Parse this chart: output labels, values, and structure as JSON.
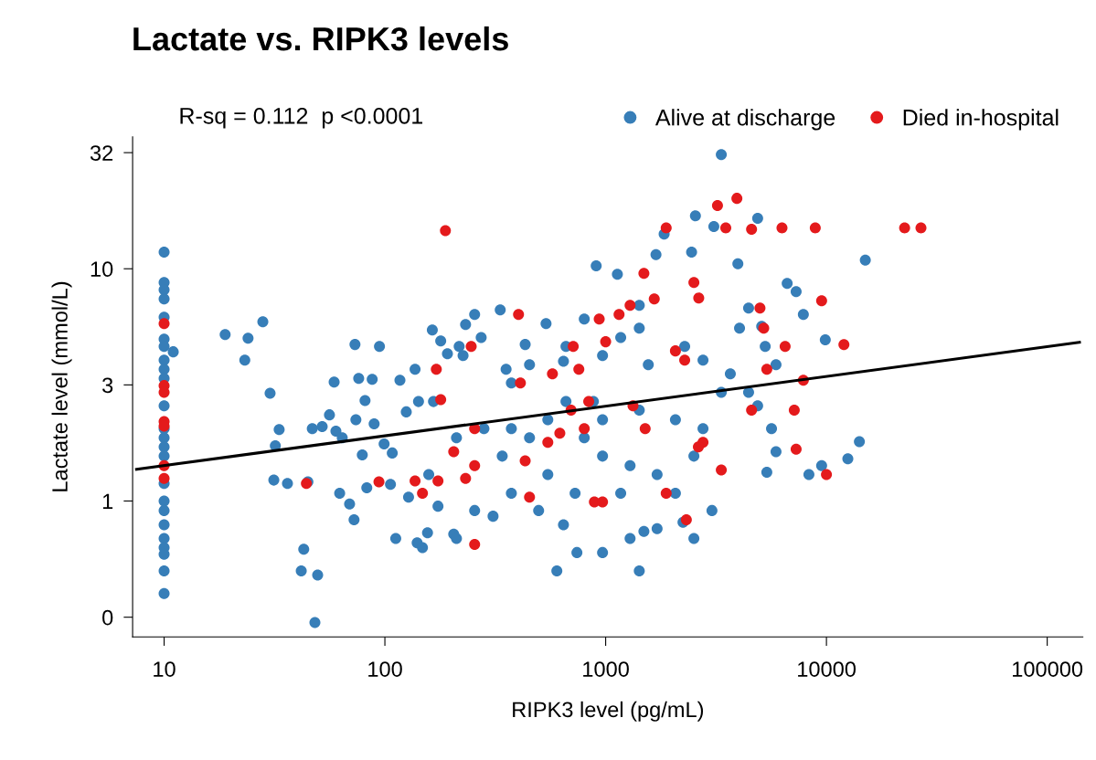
{
  "chart_data": {
    "type": "scatter",
    "title": "Lactate vs. RIPK3 levels",
    "xlabel": "RIPK3 level (pg/mL)",
    "ylabel": "Lactate level (mmol/L)",
    "annotations": [
      "R-sq = 0.112  p <0.0001"
    ],
    "log": "xy",
    "xlim": [
      7.2,
      145000
    ],
    "ylim": [
      0.26,
      37
    ],
    "xticks": [
      10,
      100,
      1000,
      10000,
      100000
    ],
    "yticks": [
      {
        "value": 0.316,
        "label": "0"
      },
      1,
      {
        "value": 3.162,
        "label": "3"
      },
      10,
      {
        "value": 31.62,
        "label": "32"
      }
    ],
    "grid": false,
    "legend": "top right",
    "marker": "circle",
    "series": [
      {
        "name": "Alive at discharge",
        "color": "#377eb8",
        "x": [
          10,
          10,
          10,
          10,
          10,
          10,
          10,
          10,
          10,
          10,
          10,
          10,
          10,
          10,
          10,
          10,
          10,
          10,
          10,
          10,
          10,
          10,
          10,
          10,
          11.0,
          18.9,
          24.0,
          28.0,
          23.2,
          30.2,
          33.2,
          31.9,
          31.4,
          36.2,
          44.8,
          46.9,
          52.0,
          56.1,
          60.0,
          42.9,
          41.8,
          49.6,
          48.2,
          62.4,
          69.2,
          72.5,
          64.1,
          58.9,
          73.9,
          76.1,
          79.0,
          73.2,
          81.3,
          82.8,
          87.6,
          89.4,
          94.5,
          99.2,
          106,
          112,
          117,
          125,
          128,
          137,
          140,
          148,
          156,
          142,
          164,
          179,
          192,
          205,
          217,
          226,
          232,
          255,
          273,
          333,
          354,
          432,
          537,
          644,
          906,
          1130,
          1420,
          1690,
          1840,
          2450,
          2550,
          3090,
          3970,
          4440,
          5090,
          5280,
          6640,
          7290,
          7860,
          3340,
          4880,
          15000,
          14100,
          12500,
          9880,
          9510,
          8330,
          5370,
          5910,
          3030,
          2510,
          2240,
          1710,
          1490,
          1290,
          968,
          741,
          644,
          601,
          1420,
          497,
          374,
          309,
          255,
          211,
          174,
          158,
          211,
          281,
          374,
          547,
          661,
          880,
          1420,
          2070,
          2760,
          3340,
          800,
          968,
          1290,
          1710,
          2510,
          4440,
          3670,
          4880,
          5640,
          374,
          452,
          661,
          800,
          968,
          1170,
          1420,
          2280,
          2760,
          4040,
          5910,
          1560,
          547,
          727,
          1170,
          2070,
          340,
          452,
          968,
          108,
          166
        ],
        "values": [
          11.8,
          8.73,
          8.12,
          7.42,
          6.19,
          4.98,
          4.63,
          4.04,
          3.69,
          3.37,
          2.57,
          2.05,
          1.87,
          1.71,
          1.56,
          1.19,
          1.0,
          0.91,
          0.79,
          0.69,
          0.63,
          0.59,
          0.5,
          0.4,
          4.39,
          5.21,
          5.02,
          5.91,
          4.04,
          2.91,
          2.03,
          1.73,
          1.23,
          1.19,
          1.21,
          2.05,
          2.09,
          2.35,
          2.0,
          0.62,
          0.5,
          0.48,
          0.3,
          1.08,
          0.97,
          0.83,
          1.87,
          3.25,
          2.24,
          3.37,
          1.58,
          4.72,
          2.71,
          1.14,
          3.34,
          2.15,
          4.63,
          1.76,
          1.18,
          0.69,
          3.31,
          2.42,
          1.04,
          3.69,
          0.66,
          0.63,
          0.73,
          2.68,
          5.45,
          4.89,
          4.31,
          0.72,
          4.63,
          4.23,
          5.75,
          6.36,
          5.06,
          6.65,
          3.69,
          4.72,
          5.81,
          4.0,
          10.3,
          9.47,
          6.96,
          11.5,
          14.1,
          11.8,
          16.9,
          15.2,
          10.5,
          6.77,
          5.65,
          4.63,
          8.65,
          7.97,
          6.36,
          31.0,
          16.5,
          10.9,
          1.8,
          1.52,
          4.94,
          1.42,
          1.3,
          1.33,
          1.63,
          0.91,
          0.69,
          0.81,
          0.76,
          0.74,
          0.69,
          0.6,
          0.6,
          0.79,
          0.5,
          0.5,
          0.91,
          1.08,
          0.86,
          0.91,
          0.69,
          0.95,
          1.3,
          1.87,
          2.05,
          2.05,
          2.24,
          2.68,
          2.68,
          2.46,
          2.24,
          2.05,
          2.94,
          1.87,
          1.56,
          1.42,
          1.3,
          1.56,
          2.94,
          3.53,
          2.57,
          2.05,
          3.22,
          3.86,
          4.63,
          6.08,
          4.23,
          5.06,
          5.55,
          4.63,
          4.04,
          5.55,
          3.86,
          3.86,
          1.3,
          1.08,
          1.08,
          1.08,
          1.56,
          1.87,
          2.24,
          1.61,
          2.68
        ]
      },
      {
        "name": "Died in-hospital",
        "color": "#e41a1c",
        "x": [
          10,
          10,
          10,
          10,
          10,
          10,
          10,
          188,
          403,
          246,
          171,
          179,
          255,
          205,
          255,
          232,
          174,
          137,
          94,
          148,
          44.1,
          255,
          432,
          547,
          620,
          411,
          574,
          713,
          756,
          838,
          935,
          1000,
          1150,
          1290,
          1660,
          2070,
          2280,
          2510,
          2640,
          1880,
          1490,
          3210,
          3930,
          3500,
          4580,
          5000,
          5200,
          6290,
          8900,
          9510,
          6500,
          5370,
          7860,
          7150,
          4580,
          3340,
          2760,
          1880,
          1510,
          452,
          800,
          889,
          968,
          2320,
          697,
          1330,
          12000,
          10000,
          7290,
          22600,
          26800,
          2630
        ],
        "values": [
          5.81,
          3.14,
          2.94,
          2.2,
          2.1,
          1.42,
          1.25,
          14.6,
          6.36,
          4.63,
          3.69,
          2.73,
          2.05,
          1.63,
          1.42,
          1.25,
          1.22,
          1.22,
          1.21,
          1.08,
          1.19,
          0.65,
          1.49,
          1.79,
          1.96,
          3.22,
          3.53,
          4.63,
          3.69,
          2.68,
          6.08,
          4.85,
          6.36,
          6.96,
          7.42,
          4.43,
          4.04,
          8.73,
          7.48,
          15.0,
          9.56,
          18.7,
          20.1,
          15.0,
          14.8,
          6.77,
          5.55,
          15.0,
          15.0,
          7.28,
          4.63,
          3.69,
          3.31,
          2.46,
          2.46,
          1.36,
          1.79,
          1.08,
          2.05,
          1.04,
          2.05,
          0.99,
          0.99,
          0.83,
          2.46,
          2.57,
          4.71,
          1.3,
          1.67,
          15.0,
          15.0,
          1.71
        ]
      },
      {
        "type": "line",
        "marker": "none",
        "color": "#000000",
        "x": [
          7.5,
          140000
        ],
        "values": [
          1.37,
          4.82
        ]
      }
    ]
  }
}
